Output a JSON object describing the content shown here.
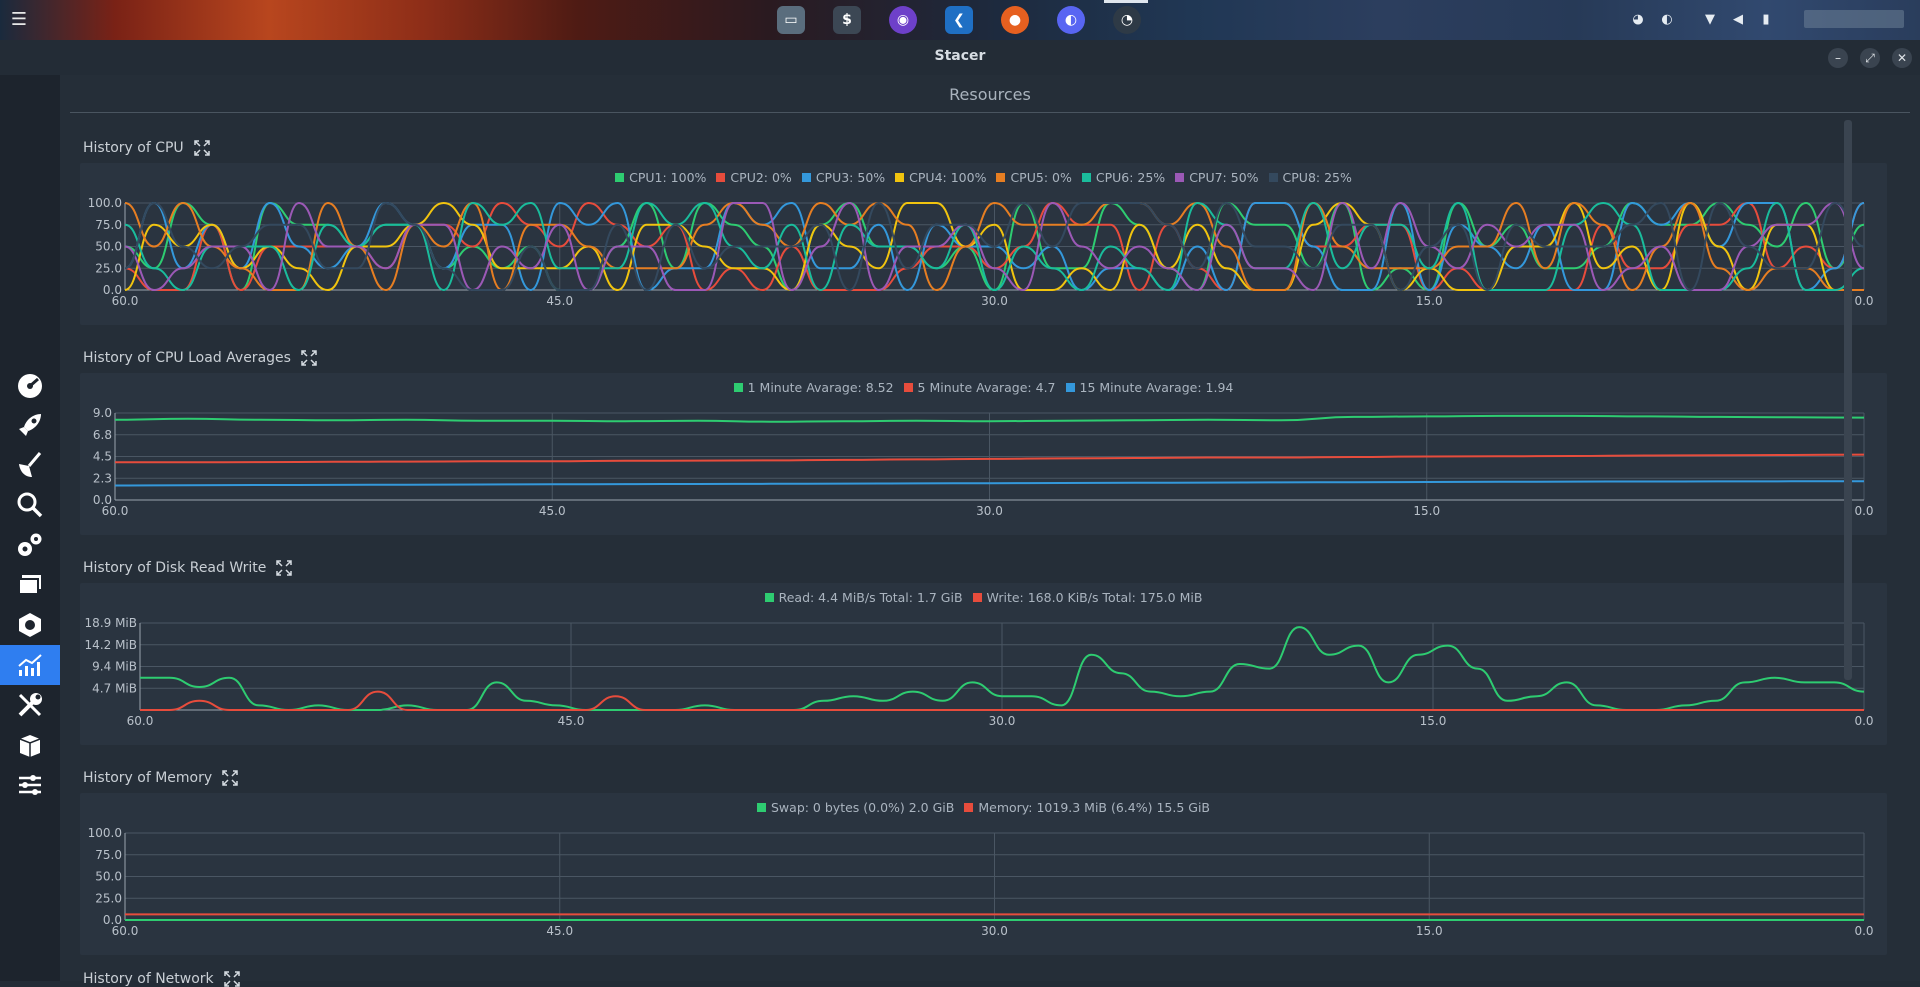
{
  "window": {
    "title": "Stacer"
  },
  "page": {
    "title": "Resources"
  },
  "theme": {
    "accent": "#2f7ef0",
    "grid": "#4a5663",
    "axis_text": "#b9c1ca"
  },
  "sidebar": {
    "items": [
      {
        "icon": "dashboard-icon"
      },
      {
        "icon": "startup-apps-icon"
      },
      {
        "icon": "system-cleaner-icon"
      },
      {
        "icon": "search-icon"
      },
      {
        "icon": "services-icon"
      },
      {
        "icon": "processes-icon"
      },
      {
        "icon": "uninstaller-icon"
      },
      {
        "icon": "resources-icon",
        "active": true
      },
      {
        "icon": "helpers-icon"
      },
      {
        "icon": "apt-repository-icon"
      },
      {
        "icon": "settings-icon"
      }
    ]
  },
  "sections": {
    "cpu": {
      "title": "History of CPU"
    },
    "load": {
      "title": "History of CPU Load Averages"
    },
    "disk": {
      "title": "History of Disk Read Write"
    },
    "memory": {
      "title": "History of Memory"
    },
    "network": {
      "title": "History of Network"
    }
  },
  "chart_data": [
    {
      "id": "cpu",
      "type": "line",
      "series": [
        {
          "name": "CPU1: 100%",
          "color": "#2ecc71",
          "seed": 1
        },
        {
          "name": "CPU2: 0%",
          "color": "#e74c3c",
          "seed": 2
        },
        {
          "name": "CPU3: 50%",
          "color": "#3498db",
          "seed": 3
        },
        {
          "name": "CPU4: 100%",
          "color": "#f1c40f",
          "seed": 4
        },
        {
          "name": "CPU5: 0%",
          "color": "#e67e22",
          "seed": 5
        },
        {
          "name": "CPU6: 25%",
          "color": "#1abc9c",
          "seed": 6
        },
        {
          "name": "CPU7: 50%",
          "color": "#9b59b6",
          "seed": 7
        },
        {
          "name": "CPU8: 25%",
          "color": "#34495e",
          "seed": 8
        }
      ],
      "y_ticks": [
        "100.0",
        "75.0",
        "50.0",
        "25.0",
        "0.0"
      ],
      "x_ticks": [
        "60.0",
        "45.0",
        "30.0",
        "15.0",
        "0.0"
      ],
      "ylim": [
        0,
        100
      ],
      "xlim": [
        60,
        0
      ]
    },
    {
      "id": "load",
      "type": "line",
      "series": [
        {
          "name": "1 Minute Avarage: 8.52",
          "color": "#2ecc71",
          "values": [
            8.3,
            8.4,
            8.3,
            8.25,
            8.3,
            8.2,
            8.2,
            8.15,
            8.2,
            8.1,
            8.15,
            8.2,
            8.15,
            8.2,
            8.25,
            8.3,
            8.25,
            8.6,
            8.65,
            8.7,
            8.7,
            8.65,
            8.6,
            8.55,
            8.52
          ]
        },
        {
          "name": "5 Minute Avarage: 4.7",
          "color": "#e74c3c",
          "values": [
            3.9,
            3.9,
            3.92,
            3.95,
            3.97,
            4.0,
            4.0,
            4.05,
            4.08,
            4.1,
            4.15,
            4.2,
            4.25,
            4.3,
            4.35,
            4.4,
            4.4,
            4.45,
            4.5,
            4.52,
            4.55,
            4.6,
            4.62,
            4.65,
            4.7
          ]
        },
        {
          "name": "15 Minute Avarage: 1.94",
          "color": "#3498db",
          "values": [
            1.5,
            1.52,
            1.55,
            1.56,
            1.58,
            1.6,
            1.62,
            1.64,
            1.66,
            1.68,
            1.7,
            1.72,
            1.74,
            1.76,
            1.78,
            1.8,
            1.82,
            1.84,
            1.86,
            1.88,
            1.9,
            1.91,
            1.92,
            1.93,
            1.94
          ]
        }
      ],
      "y_ticks": [
        "9.0",
        "6.8",
        "4.5",
        "2.3",
        "0.0"
      ],
      "x_ticks": [
        "60.0",
        "45.0",
        "30.0",
        "15.0",
        "0.0"
      ],
      "ylim": [
        0,
        9
      ],
      "xlim": [
        60,
        0
      ]
    },
    {
      "id": "disk",
      "type": "line",
      "series": [
        {
          "name": "Read: 4.4 MiB/s Total: 1.7 GiB",
          "color": "#2ecc71",
          "values": [
            7,
            7,
            5,
            7,
            1,
            0,
            1,
            0,
            0,
            1,
            0,
            0,
            6,
            2,
            1,
            0,
            0,
            0,
            0,
            1,
            0,
            0,
            0,
            2,
            3,
            2,
            4,
            2,
            6,
            3,
            3,
            1,
            12,
            8,
            4,
            3,
            4,
            10,
            9,
            18,
            12,
            14,
            6,
            12,
            14,
            9,
            2,
            3,
            6,
            1,
            0,
            0,
            1,
            2,
            6,
            7,
            6,
            6,
            4
          ]
        },
        {
          "name": "Write: 168.0 KiB/s Total: 175.0 MiB",
          "color": "#e74c3c",
          "values": [
            0,
            0,
            2,
            0,
            0,
            0,
            0,
            0,
            4,
            0,
            0,
            0,
            0,
            0,
            0,
            0,
            3,
            0,
            0,
            0,
            0,
            0,
            0,
            0,
            0,
            0,
            0,
            0,
            0,
            0,
            0,
            0,
            0,
            0,
            0,
            0,
            0,
            0,
            0,
            0,
            0,
            0,
            0,
            0,
            0,
            0,
            0,
            0,
            0,
            0,
            0,
            0,
            0,
            0,
            0,
            0,
            0,
            0,
            0
          ]
        }
      ],
      "y_ticks": [
        "18.9 MiB",
        "14.2 MiB",
        "9.4 MiB",
        "4.7 MiB",
        ""
      ],
      "x_ticks": [
        "60.0",
        "45.0",
        "30.0",
        "15.0",
        "0.0"
      ],
      "ylim": [
        0,
        18.9
      ],
      "xlim": [
        60,
        0
      ]
    },
    {
      "id": "memory",
      "type": "line",
      "series": [
        {
          "name": "Swap: 0 bytes (0.0%) 2.0 GiB",
          "color": "#2ecc71",
          "values": [
            0,
            0
          ]
        },
        {
          "name": "Memory: 1019.3 MiB (6.4%) 15.5 GiB",
          "color": "#e74c3c",
          "values": [
            6.4,
            6.4
          ]
        }
      ],
      "y_ticks": [
        "100.0",
        "75.0",
        "50.0",
        "25.0",
        "0.0"
      ],
      "x_ticks": [
        "60.0",
        "45.0",
        "30.0",
        "15.0",
        "0.0"
      ],
      "ylim": [
        0,
        100
      ],
      "xlim": [
        60,
        0
      ]
    }
  ]
}
